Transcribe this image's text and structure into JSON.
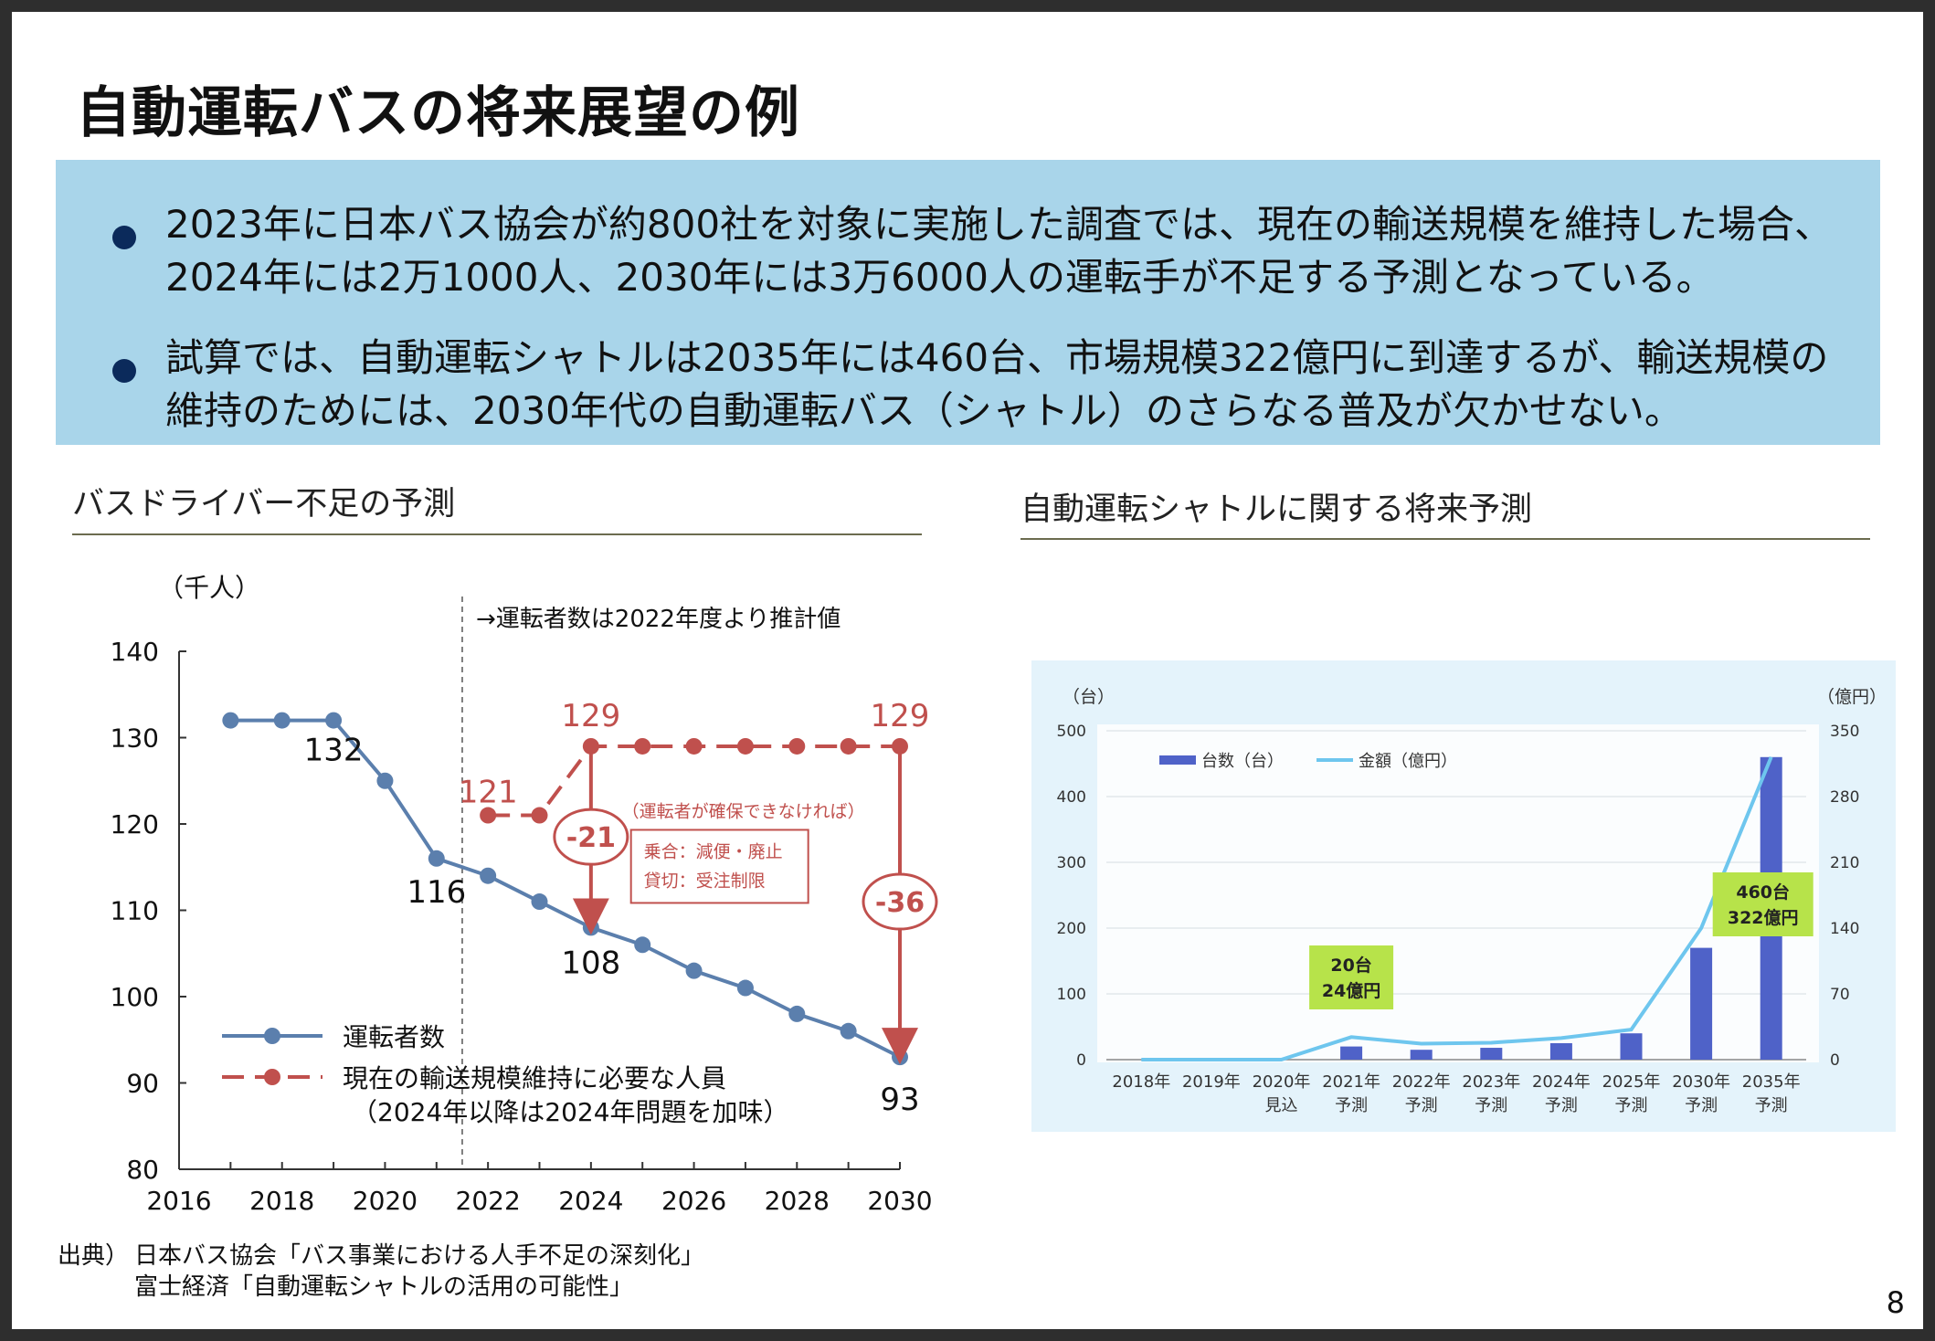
{
  "title": "自動運転バスの将来展望の例",
  "bullets": [
    {
      "text": "2023年に日本バス協会が約800社を対象に実施した調査では、現在の輸送規模を維持した場合、2024年には2万1000人、2030年には3万6000人の運転手が不足する予測となっている。"
    },
    {
      "text": "試算では、自動運転シャトルは2035年には460台、市場規模322億円に到達するが、輸送規模の維持のためには、2030年代の自動運転バス（シャトル）のさらなる普及が欠かせない。"
    }
  ],
  "left_panel": {
    "title": "バスドライバー不足の予測"
  },
  "right_panel": {
    "title": "自動運転シャトルに関する将来予測"
  },
  "source": {
    "label": "出典）",
    "lines": [
      "日本バス協会「バス事業における人手不足の深刻化」",
      "富士経済「自動運転シャトルの活用の可能性」"
    ]
  },
  "page_number": "8",
  "chart_data": [
    {
      "type": "line",
      "unit_label": "（千人）",
      "annotation": "→運転者数は2022年度より推計値",
      "xlim": [
        2016,
        2030
      ],
      "ylim": [
        80,
        140
      ],
      "x_ticks": [
        "2016",
        "2018",
        "2020",
        "2022",
        "2024",
        "2026",
        "2028",
        "2030"
      ],
      "y_ticks": [
        "140",
        "130",
        "120",
        "110",
        "100",
        "90",
        "80"
      ],
      "series": [
        {
          "name": "運転者数",
          "color": "#5b7fad",
          "x": [
            2017,
            2018,
            2019,
            2020,
            2021,
            2022,
            2023,
            2024,
            2025,
            2026,
            2027,
            2028,
            2029,
            2030
          ],
          "y": [
            132,
            132,
            132,
            125,
            116,
            114,
            111,
            108,
            106,
            103,
            101,
            98,
            96,
            93
          ]
        },
        {
          "name": "現在の輸送規模維持に必要な人員",
          "name_note": "（2024年以降は2024年問題を加味）",
          "color": "#c0504d",
          "dashed": true,
          "x": [
            2022,
            2023,
            2024,
            2025,
            2026,
            2027,
            2028,
            2029,
            2030
          ],
          "y": [
            121,
            121,
            129,
            129,
            129,
            129,
            129,
            129,
            129
          ]
        }
      ],
      "data_labels": [
        {
          "text": "132",
          "x": 2019,
          "y": 132
        },
        {
          "text": "116",
          "x": 2021,
          "y": 116
        },
        {
          "text": "108",
          "x": 2024,
          "y": 108
        },
        {
          "text": "93",
          "x": 2030,
          "y": 93
        },
        {
          "text": "121",
          "x": 2022,
          "y": 121
        },
        {
          "text": "129",
          "x": 2024,
          "y": 129
        },
        {
          "text": "129",
          "x": 2030,
          "y": 129
        }
      ],
      "gaps": [
        {
          "text": "-21",
          "x": 2024,
          "from": 129,
          "to": 108
        },
        {
          "text": "-36",
          "x": 2030,
          "from": 129,
          "to": 93
        }
      ],
      "note_title": "（運転者が確保できなければ）",
      "note_lines": [
        "乗合：減便・廃止",
        "貸切：受注制限"
      ],
      "divider_x": 2021.5
    },
    {
      "type": "bar",
      "left_unit": "（台）",
      "right_unit": "（億円）",
      "categories": [
        [
          "2018年",
          ""
        ],
        [
          "2019年",
          ""
        ],
        [
          "2020年",
          "見込"
        ],
        [
          "2021年",
          "予測"
        ],
        [
          "2022年",
          "予測"
        ],
        [
          "2023年",
          "予測"
        ],
        [
          "2024年",
          "予測"
        ],
        [
          "2025年",
          "予測"
        ],
        [
          "2030年",
          "予測"
        ],
        [
          "2035年",
          "予測"
        ]
      ],
      "ylim_left": [
        0,
        500
      ],
      "ylim_right": [
        0,
        350
      ],
      "y_ticks_left": [
        "500",
        "400",
        "300",
        "200",
        "100",
        "0"
      ],
      "y_ticks_right": [
        "350",
        "280",
        "210",
        "140",
        "70",
        "0"
      ],
      "series": [
        {
          "name": "台数（台）",
          "kind": "bar",
          "axis": "left",
          "color": "#4f62c8",
          "values": [
            0,
            0,
            0,
            20,
            15,
            18,
            25,
            40,
            170,
            460
          ]
        },
        {
          "name": "金額（億円）",
          "kind": "line",
          "axis": "right",
          "color": "#6ec6ee",
          "values": [
            0,
            0,
            0,
            24,
            17,
            18,
            23,
            32,
            140,
            322
          ]
        }
      ],
      "callouts": [
        {
          "lines": [
            "20台",
            "24億円"
          ],
          "category_index": 3
        },
        {
          "lines": [
            "460台",
            "322億円"
          ],
          "category_index": 9
        }
      ],
      "callout_color": "#b7e34a"
    }
  ]
}
